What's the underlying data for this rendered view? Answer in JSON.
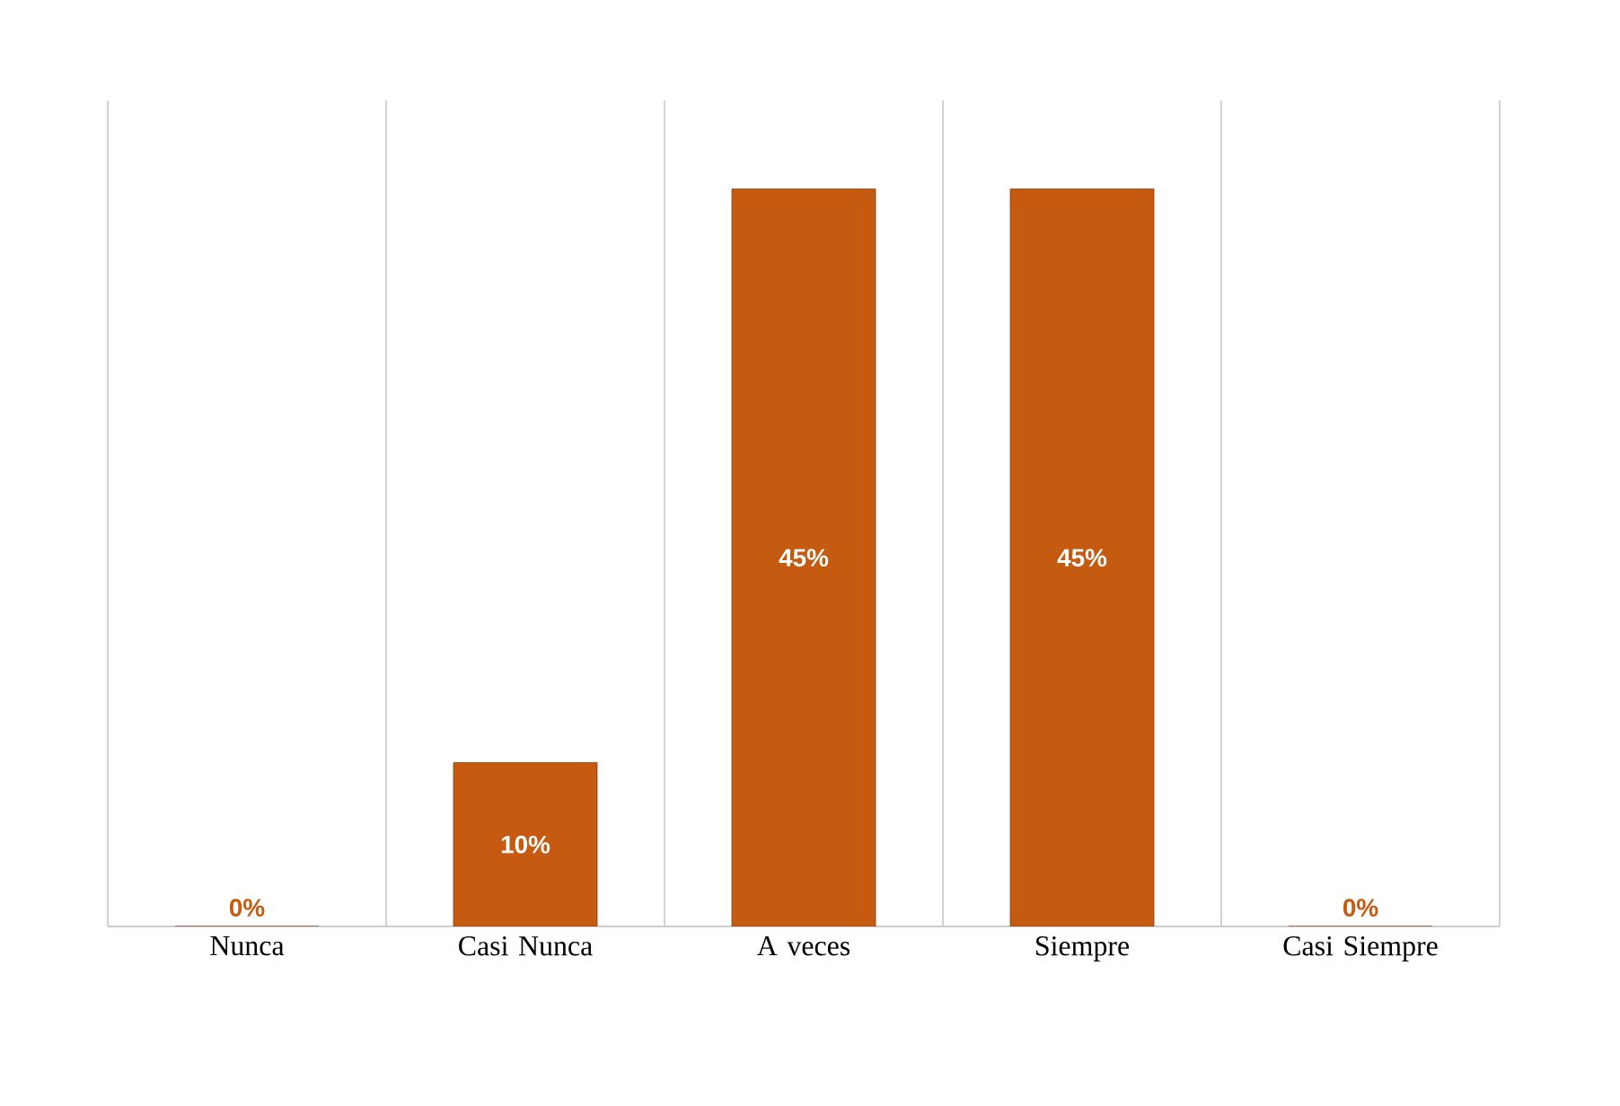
{
  "chart_data": {
    "type": "bar",
    "categories": [
      "Nunca",
      "Casi Nunca",
      "A veces",
      "Siempre",
      "Casi Siempre"
    ],
    "values": [
      0,
      10,
      45,
      45,
      0
    ],
    "value_labels": [
      "0%",
      "10%",
      "45%",
      "45%",
      "0%"
    ],
    "color": "#c55a11",
    "grid": "x"
  }
}
